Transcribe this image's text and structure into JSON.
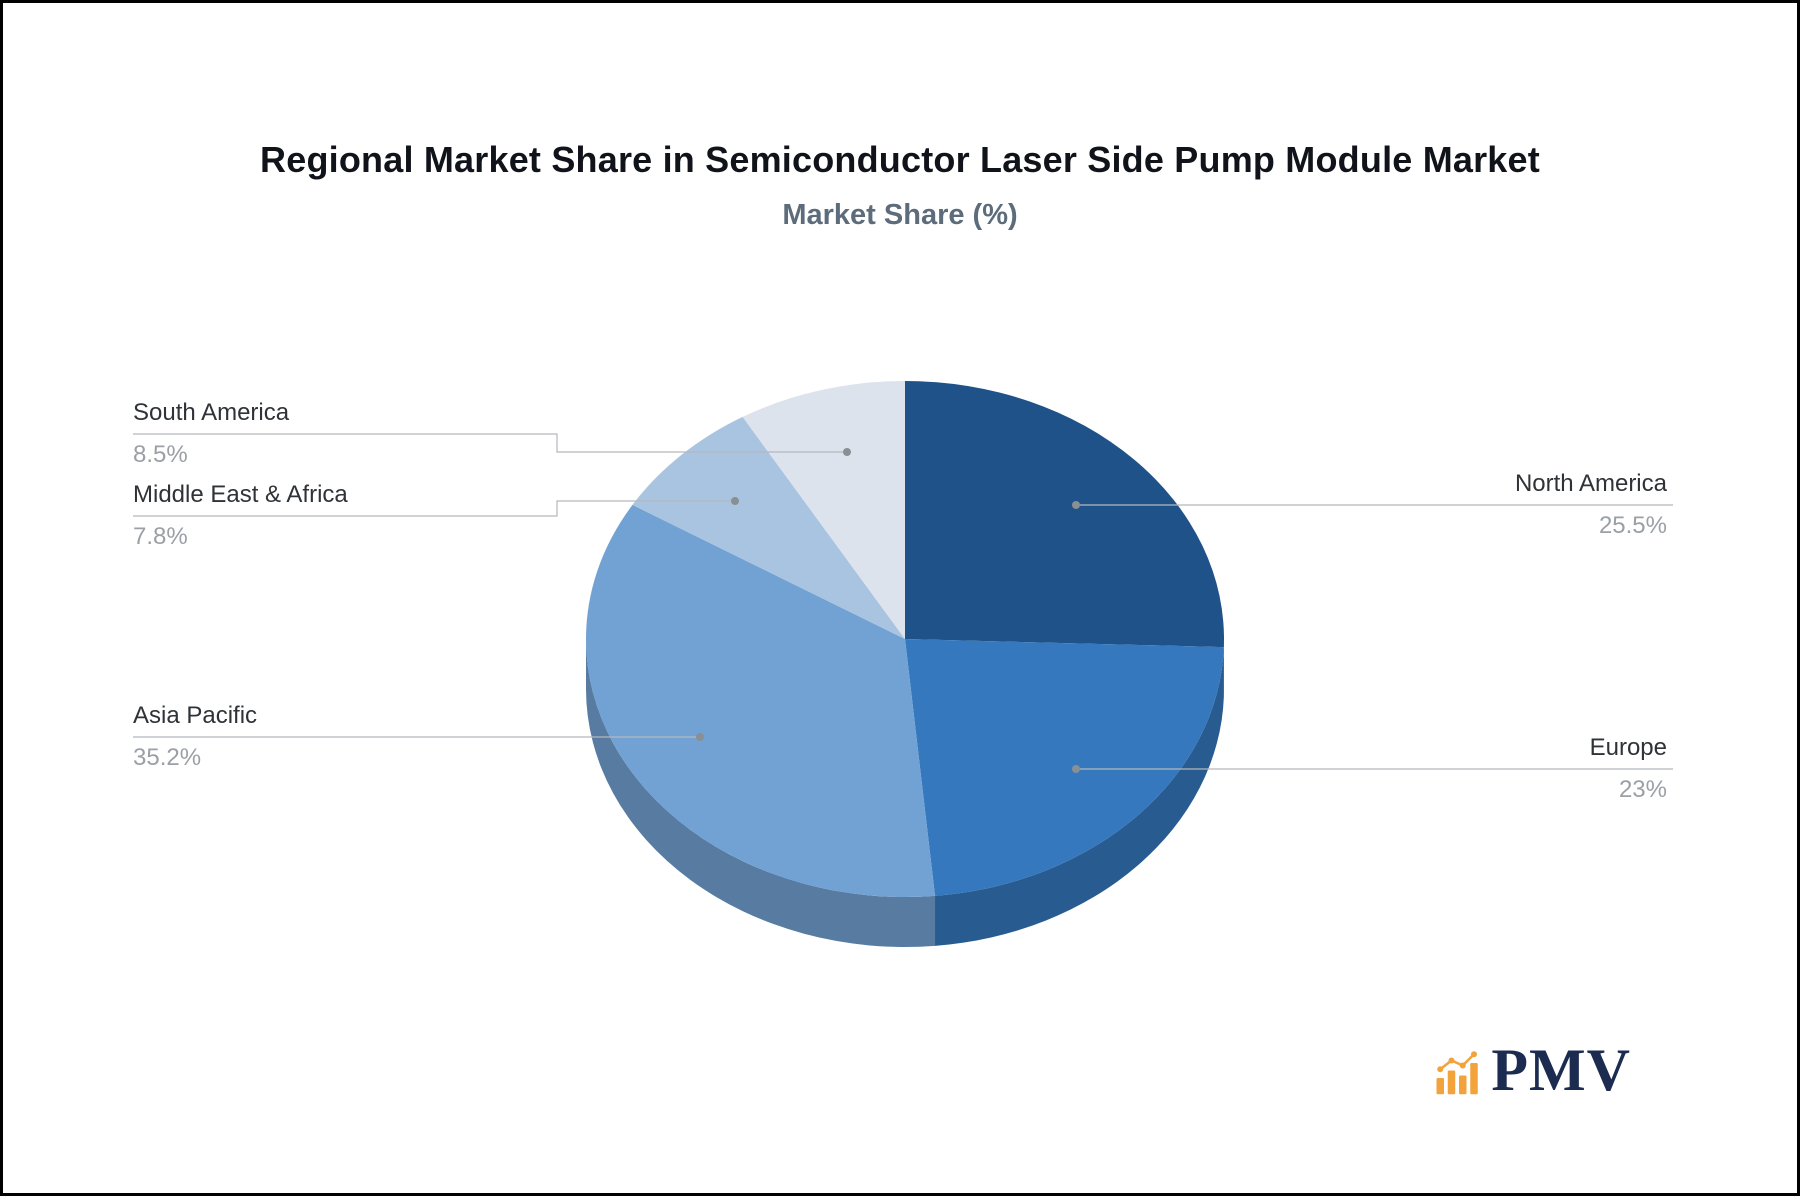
{
  "title": "Regional Market Share in Semiconductor Laser Side Pump Module Market",
  "subtitle": "Market Share (%)",
  "logo": {
    "text": "PMV",
    "icon": "bar-chart-logo-icon",
    "icon_color": "#F2A33C",
    "text_color": "#1C2B50"
  },
  "chart_data": {
    "type": "pie",
    "title": "Regional Market Share in Semiconductor Laser Side Pump Module Market",
    "subtitle": "Market Share (%)",
    "unit": "%",
    "start_angle_deg": -90,
    "direction": "clockwise",
    "effect": "3d-depth",
    "legend_position": "none",
    "leader_line_color": "#b5b8bc",
    "leader_dot_color": "#8a8f94",
    "slices": [
      {
        "label": "North America",
        "value": 25.5,
        "display": "25.5%",
        "color": "#1E5289"
      },
      {
        "label": "Europe",
        "value": 23,
        "display": "23%",
        "color": "#3578BE"
      },
      {
        "label": "Asia Pacific",
        "value": 35.2,
        "display": "35.2%",
        "color": "#72A2D4"
      },
      {
        "label": "Middle East & Africa",
        "value": 7.8,
        "display": "7.8%",
        "color": "#A9C4E0"
      },
      {
        "label": "South America",
        "value": 8.5,
        "display": "8.5%",
        "color": "#DCE3ED"
      }
    ]
  }
}
